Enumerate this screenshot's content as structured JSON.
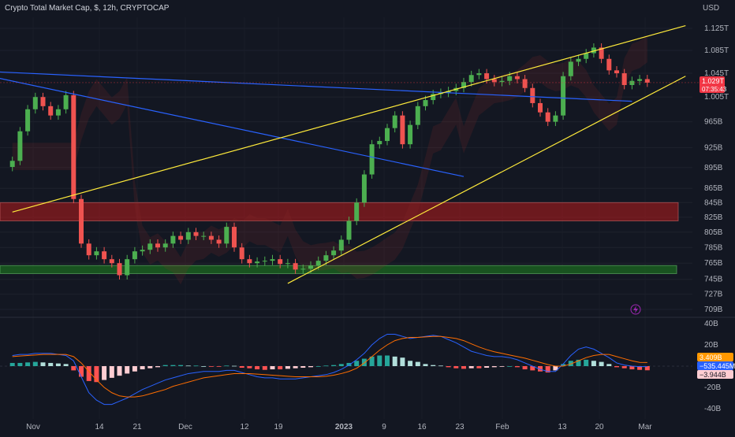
{
  "chart_data": {
    "type": "candlestick",
    "title": "Crypto Total Market Cap, $, 12h, CRYPTOCAP",
    "currency_label": "USD",
    "colors": {
      "background": "#131722",
      "up": "#26a69a",
      "up_body": "#4caf50",
      "down": "#ef5350",
      "trendline": "#2962ff",
      "wedge": "#ffeb3b",
      "resistance_zone": "#b71c1c",
      "support_zone": "#1b5e20",
      "macd_line": "#2962ff",
      "signal_line": "#ff6d00",
      "price_badge": "#f23645"
    },
    "price_axis": {
      "scale": "log",
      "ticks": [
        "1.125T",
        "1.085T",
        "1.045T",
        "1.005T",
        "965B",
        "925B",
        "895B",
        "865B",
        "845B",
        "825B",
        "805B",
        "785B",
        "765B",
        "745B",
        "727B",
        "709B"
      ]
    },
    "current_price_label": "1.029T",
    "countdown_label": "07:35:43",
    "time_axis": {
      "ticks": [
        "Nov",
        "14",
        "21",
        "Dec",
        "12",
        "19",
        "2023",
        "9",
        "16",
        "23",
        "Feb",
        "13",
        "20",
        "Mar"
      ],
      "bold_ticks": [
        "2023"
      ]
    },
    "price_series": [
      [
        1,
        905
      ],
      [
        2,
        950
      ],
      [
        3,
        985
      ],
      [
        4,
        1005
      ],
      [
        5,
        990
      ],
      [
        6,
        975
      ],
      [
        7,
        985
      ],
      [
        8,
        1008
      ],
      [
        9,
        850
      ],
      [
        10,
        790
      ],
      [
        11,
        775
      ],
      [
        12,
        780
      ],
      [
        13,
        770
      ],
      [
        14,
        765
      ],
      [
        15,
        750
      ],
      [
        16,
        770
      ],
      [
        17,
        780
      ],
      [
        18,
        782
      ],
      [
        19,
        790
      ],
      [
        20,
        785
      ],
      [
        21,
        790
      ],
      [
        22,
        800
      ],
      [
        23,
        795
      ],
      [
        24,
        805
      ],
      [
        25,
        800
      ],
      [
        26,
        800
      ],
      [
        27,
        795
      ],
      [
        28,
        790
      ],
      [
        29,
        812
      ],
      [
        30,
        785
      ],
      [
        31,
        770
      ],
      [
        32,
        765
      ],
      [
        33,
        767
      ],
      [
        34,
        768
      ],
      [
        35,
        770
      ],
      [
        36,
        764
      ],
      [
        37,
        765
      ],
      [
        38,
        757
      ],
      [
        39,
        758
      ],
      [
        40,
        762
      ],
      [
        41,
        768
      ],
      [
        42,
        775
      ],
      [
        43,
        781
      ],
      [
        44,
        795
      ],
      [
        45,
        820
      ],
      [
        46,
        845
      ],
      [
        47,
        885
      ],
      [
        48,
        930
      ],
      [
        49,
        935
      ],
      [
        50,
        955
      ],
      [
        51,
        975
      ],
      [
        52,
        930
      ],
      [
        53,
        960
      ],
      [
        54,
        990
      ],
      [
        55,
        1000
      ],
      [
        56,
        1010
      ],
      [
        57,
        1012
      ],
      [
        58,
        1015
      ],
      [
        59,
        1020
      ],
      [
        60,
        1030
      ],
      [
        61,
        1042
      ],
      [
        62,
        1045
      ],
      [
        63,
        1035
      ],
      [
        64,
        1030
      ],
      [
        65,
        1032
      ],
      [
        66,
        1040
      ],
      [
        67,
        1035
      ],
      [
        68,
        1020
      ],
      [
        69,
        995
      ],
      [
        70,
        980
      ],
      [
        71,
        965
      ],
      [
        72,
        975
      ],
      [
        73,
        1040
      ],
      [
        74,
        1065
      ],
      [
        75,
        1070
      ],
      [
        76,
        1080
      ],
      [
        77,
        1090
      ],
      [
        78,
        1070
      ],
      [
        79,
        1050
      ],
      [
        80,
        1045
      ],
      [
        81,
        1025
      ],
      [
        82,
        1032
      ],
      [
        83,
        1035
      ],
      [
        84,
        1029
      ]
    ],
    "annotations": {
      "resistance_zone": [
        820,
        845
      ],
      "support_zone": [
        752,
        762
      ],
      "descending_line_1": [
        [
          -2,
          1048
        ],
        [
          82,
          998
        ]
      ],
      "descending_line_2": [
        [
          -2,
          1040
        ],
        [
          60,
          882
        ]
      ],
      "wedge_upper": [
        [
          1,
          832
        ],
        [
          89,
          1130
        ]
      ],
      "wedge_lower": [
        [
          37,
          740
        ],
        [
          89,
          1040
        ]
      ]
    },
    "macd_axis": {
      "ticks": [
        "40B",
        "20B",
        "-20B",
        "-40B"
      ],
      "labels": [
        "3.409B",
        "−535.445M",
        "−3.944B"
      ]
    },
    "macd": {
      "histogram": [
        3,
        3,
        3.5,
        4,
        3.5,
        3,
        2.5,
        2,
        -4,
        -10,
        -14,
        -15,
        -13,
        -11,
        -9,
        -7,
        -5,
        -3,
        -2,
        -1,
        1,
        1,
        1,
        0.5,
        0.5,
        0,
        -0.5,
        -0.5,
        0.5,
        0.3,
        -1.5,
        -2,
        -3,
        -3.5,
        -3,
        -3,
        -2.5,
        -2,
        -1.5,
        -1,
        0,
        0.5,
        1,
        2,
        3,
        5,
        7,
        9,
        10,
        10,
        9,
        8,
        5,
        4,
        2,
        1,
        0.5,
        -1,
        -2,
        -2.5,
        -2,
        -2,
        -1.5,
        -1,
        -0.5,
        0,
        -1,
        -3,
        -4,
        -5,
        -6,
        -4,
        2,
        5,
        6,
        6,
        5,
        4,
        2,
        -1,
        -2,
        -3,
        -3.5,
        -3.9
      ],
      "macd_line": [
        10,
        11,
        11,
        12,
        12,
        12,
        11,
        10,
        5,
        -10,
        -25,
        -32,
        -36,
        -36,
        -33,
        -30,
        -26,
        -22,
        -19,
        -16,
        -13,
        -11,
        -9,
        -7,
        -6,
        -5,
        -5,
        -5,
        -4,
        -4,
        -6,
        -8,
        -10,
        -11,
        -11,
        -12,
        -12,
        -12,
        -11,
        -10,
        -9,
        -8,
        -6,
        -3,
        1,
        6,
        12,
        20,
        26,
        30,
        30,
        28,
        26,
        27,
        28,
        29,
        28,
        25,
        22,
        18,
        14,
        12,
        10,
        9,
        9,
        8,
        6,
        3,
        0,
        -3,
        -5,
        -5,
        2,
        10,
        16,
        18,
        16,
        12,
        8,
        3,
        1,
        0,
        -0.5,
        -0.5
      ],
      "signal_line": [
        9,
        9.5,
        10,
        10.5,
        11,
        11,
        11,
        11,
        9,
        3,
        -5,
        -13,
        -20,
        -25,
        -28,
        -29,
        -29,
        -28,
        -26,
        -24,
        -22,
        -19,
        -17,
        -15,
        -13,
        -11,
        -10,
        -9,
        -8,
        -7,
        -7,
        -7,
        -7.5,
        -8,
        -8.5,
        -9,
        -9.5,
        -10,
        -10,
        -10,
        -10,
        -9.5,
        -8.5,
        -7,
        -5,
        -2,
        3,
        9,
        15,
        20,
        24,
        26,
        27,
        27,
        27.5,
        28,
        28,
        27,
        26,
        24,
        21,
        18,
        15.5,
        13.5,
        12,
        10.5,
        9,
        7.5,
        5.5,
        3.5,
        1.5,
        0,
        0,
        2,
        5,
        8,
        10,
        11,
        11,
        9,
        7,
        5,
        3.5,
        3.4
      ]
    }
  }
}
